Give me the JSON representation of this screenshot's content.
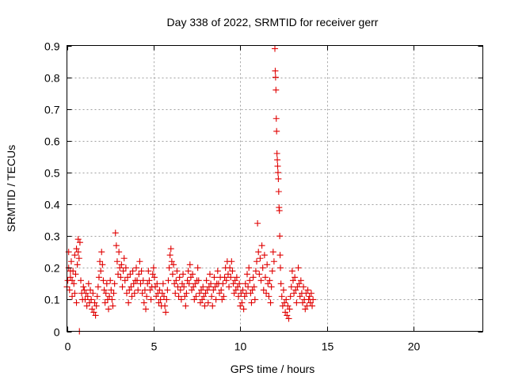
{
  "chart_data": {
    "type": "scatter",
    "title": "Day 338 of 2022, SRMTID for receiver gerr",
    "xlabel": "GPS time / hours",
    "ylabel": "SRMTID / TECUs",
    "xlim": [
      0,
      24
    ],
    "ylim": [
      0,
      0.9
    ],
    "xticks": [
      0,
      5,
      10,
      15,
      20
    ],
    "yticks": [
      0,
      0.1,
      0.2,
      0.3,
      0.4,
      0.5,
      0.6,
      0.7,
      0.8,
      0.9
    ],
    "xtick_labels": [
      "0",
      "5",
      "10",
      "15",
      "20"
    ],
    "ytick_labels": [
      "0",
      "0.1",
      "0.2",
      "0.3",
      "0.4",
      "0.5",
      "0.6",
      "0.7",
      "0.8",
      "0.9"
    ],
    "grid": true,
    "marker": "+",
    "series": [
      {
        "name": "SRMTID",
        "color": "#e00000",
        "points": [
          [
            0.0,
            0.14
          ],
          [
            0.05,
            0.16
          ],
          [
            0.1,
            0.2
          ],
          [
            0.15,
            0.13
          ],
          [
            0.2,
            0.17
          ],
          [
            0.25,
            0.22
          ],
          [
            0.3,
            0.11
          ],
          [
            0.35,
            0.19
          ],
          [
            0.4,
            0.15
          ],
          [
            0.45,
            0.24
          ],
          [
            0.5,
            0.18
          ],
          [
            0.55,
            0.26
          ],
          [
            0.6,
            0.21
          ],
          [
            0.65,
            0.29
          ],
          [
            0.7,
            0.23
          ],
          [
            0.75,
            0.28
          ],
          [
            0.8,
            0.16
          ],
          [
            0.85,
            0.12
          ],
          [
            0.9,
            0.1
          ],
          [
            0.95,
            0.14
          ],
          [
            0.1,
            0.25
          ],
          [
            0.2,
            0.19
          ],
          [
            0.3,
            0.16
          ],
          [
            0.45,
            0.12
          ],
          [
            0.55,
            0.09
          ],
          [
            0.65,
            0.25
          ],
          [
            0.72,
            0.0
          ],
          [
            1.0,
            0.13
          ],
          [
            1.05,
            0.1
          ],
          [
            1.1,
            0.12
          ],
          [
            1.15,
            0.08
          ],
          [
            1.2,
            0.11
          ],
          [
            1.25,
            0.15
          ],
          [
            1.3,
            0.09
          ],
          [
            1.35,
            0.13
          ],
          [
            1.4,
            0.1
          ],
          [
            1.45,
            0.07
          ],
          [
            1.5,
            0.12
          ],
          [
            1.55,
            0.06
          ],
          [
            1.6,
            0.09
          ],
          [
            1.65,
            0.05
          ],
          [
            1.7,
            0.08
          ],
          [
            1.75,
            0.11
          ],
          [
            1.8,
            0.14
          ],
          [
            1.85,
            0.17
          ],
          [
            1.9,
            0.22
          ],
          [
            1.95,
            0.19
          ],
          [
            2.0,
            0.25
          ],
          [
            2.05,
            0.21
          ],
          [
            2.1,
            0.16
          ],
          [
            2.15,
            0.13
          ],
          [
            2.2,
            0.09
          ],
          [
            2.25,
            0.12
          ],
          [
            2.3,
            0.15
          ],
          [
            2.35,
            0.1
          ],
          [
            2.4,
            0.07
          ],
          [
            2.45,
            0.11
          ],
          [
            2.5,
            0.16
          ],
          [
            2.55,
            0.13
          ],
          [
            2.6,
            0.1
          ],
          [
            2.65,
            0.08
          ],
          [
            2.7,
            0.12
          ],
          [
            2.75,
            0.15
          ],
          [
            2.8,
            0.31
          ],
          [
            2.85,
            0.27
          ],
          [
            2.9,
            0.22
          ],
          [
            2.95,
            0.18
          ],
          [
            3.0,
            0.25
          ],
          [
            3.05,
            0.2
          ],
          [
            3.1,
            0.17
          ],
          [
            3.15,
            0.21
          ],
          [
            3.2,
            0.14
          ],
          [
            3.25,
            0.19
          ],
          [
            3.3,
            0.23
          ],
          [
            3.35,
            0.16
          ],
          [
            3.4,
            0.2
          ],
          [
            3.45,
            0.12
          ],
          [
            3.5,
            0.17
          ],
          [
            3.55,
            0.09
          ],
          [
            3.6,
            0.13
          ],
          [
            3.65,
            0.18
          ],
          [
            3.7,
            0.14
          ],
          [
            3.75,
            0.11
          ],
          [
            3.8,
            0.19
          ],
          [
            3.85,
            0.15
          ],
          [
            3.9,
            0.12
          ],
          [
            3.95,
            0.16
          ],
          [
            4.0,
            0.2
          ],
          [
            4.05,
            0.16
          ],
          [
            4.1,
            0.13
          ],
          [
            4.15,
            0.18
          ],
          [
            4.2,
            0.22
          ],
          [
            4.25,
            0.15
          ],
          [
            4.3,
            0.19
          ],
          [
            4.35,
            0.12
          ],
          [
            4.4,
            0.16
          ],
          [
            4.45,
            0.09
          ],
          [
            4.5,
            0.13
          ],
          [
            4.55,
            0.07
          ],
          [
            4.6,
            0.11
          ],
          [
            4.65,
            0.15
          ],
          [
            4.7,
            0.19
          ],
          [
            4.75,
            0.16
          ],
          [
            4.8,
            0.13
          ],
          [
            4.85,
            0.1
          ],
          [
            4.9,
            0.14
          ],
          [
            4.95,
            0.18
          ],
          [
            5.0,
            0.2
          ],
          [
            5.05,
            0.17
          ],
          [
            5.1,
            0.14
          ],
          [
            5.15,
            0.11
          ],
          [
            5.2,
            0.15
          ],
          [
            5.25,
            0.12
          ],
          [
            5.3,
            0.09
          ],
          [
            5.35,
            0.13
          ],
          [
            5.4,
            0.1
          ],
          [
            5.45,
            0.08
          ],
          [
            5.5,
            0.12
          ],
          [
            5.55,
            0.15
          ],
          [
            5.6,
            0.11
          ],
          [
            5.65,
            0.08
          ],
          [
            5.7,
            0.06
          ],
          [
            5.75,
            0.1
          ],
          [
            5.8,
            0.13
          ],
          [
            5.85,
            0.16
          ],
          [
            5.9,
            0.2
          ],
          [
            5.95,
            0.24
          ],
          [
            6.0,
            0.26
          ],
          [
            6.05,
            0.22
          ],
          [
            6.1,
            0.18
          ],
          [
            6.15,
            0.21
          ],
          [
            6.2,
            0.15
          ],
          [
            6.25,
            0.12
          ],
          [
            6.3,
            0.16
          ],
          [
            6.35,
            0.19
          ],
          [
            6.4,
            0.14
          ],
          [
            6.45,
            0.11
          ],
          [
            6.5,
            0.17
          ],
          [
            6.55,
            0.13
          ],
          [
            6.6,
            0.1
          ],
          [
            6.65,
            0.15
          ],
          [
            6.7,
            0.18
          ],
          [
            6.75,
            0.14
          ],
          [
            6.8,
            0.11
          ],
          [
            6.85,
            0.08
          ],
          [
            6.9,
            0.12
          ],
          [
            6.95,
            0.16
          ],
          [
            7.0,
            0.19
          ],
          [
            7.05,
            0.15
          ],
          [
            7.1,
            0.21
          ],
          [
            7.15,
            0.17
          ],
          [
            7.2,
            0.13
          ],
          [
            7.25,
            0.18
          ],
          [
            7.3,
            0.14
          ],
          [
            7.35,
            0.1
          ],
          [
            7.4,
            0.15
          ],
          [
            7.45,
            0.11
          ],
          [
            7.5,
            0.16
          ],
          [
            7.55,
            0.2
          ],
          [
            7.6,
            0.16
          ],
          [
            7.65,
            0.12
          ],
          [
            7.7,
            0.09
          ],
          [
            7.75,
            0.13
          ],
          [
            7.8,
            0.1
          ],
          [
            7.85,
            0.14
          ],
          [
            7.9,
            0.11
          ],
          [
            7.95,
            0.08
          ],
          [
            8.0,
            0.12
          ],
          [
            8.05,
            0.16
          ],
          [
            8.1,
            0.13
          ],
          [
            8.15,
            0.09
          ],
          [
            8.2,
            0.14
          ],
          [
            8.25,
            0.18
          ],
          [
            8.3,
            0.15
          ],
          [
            8.35,
            0.11
          ],
          [
            8.4,
            0.08
          ],
          [
            8.45,
            0.13
          ],
          [
            8.5,
            0.17
          ],
          [
            8.55,
            0.14
          ],
          [
            8.6,
            0.1
          ],
          [
            8.65,
            0.15
          ],
          [
            8.7,
            0.19
          ],
          [
            8.75,
            0.15
          ],
          [
            8.8,
            0.12
          ],
          [
            8.85,
            0.17
          ],
          [
            8.9,
            0.13
          ],
          [
            8.95,
            0.1
          ],
          [
            9.0,
            0.15
          ],
          [
            9.05,
            0.11
          ],
          [
            9.1,
            0.17
          ],
          [
            9.15,
            0.2
          ],
          [
            9.2,
            0.16
          ],
          [
            9.25,
            0.22
          ],
          [
            9.3,
            0.18
          ],
          [
            9.35,
            0.14
          ],
          [
            9.4,
            0.2
          ],
          [
            9.45,
            0.17
          ],
          [
            9.5,
            0.22
          ],
          [
            9.55,
            0.19
          ],
          [
            9.6,
            0.15
          ],
          [
            9.65,
            0.12
          ],
          [
            9.7,
            0.16
          ],
          [
            9.75,
            0.13
          ],
          [
            9.8,
            0.17
          ],
          [
            9.85,
            0.14
          ],
          [
            9.9,
            0.11
          ],
          [
            9.95,
            0.15
          ],
          [
            10.0,
            0.08
          ],
          [
            10.05,
            0.12
          ],
          [
            10.1,
            0.09
          ],
          [
            10.15,
            0.13
          ],
          [
            10.2,
            0.07
          ],
          [
            10.25,
            0.11
          ],
          [
            10.3,
            0.15
          ],
          [
            10.35,
            0.12
          ],
          [
            10.4,
            0.18
          ],
          [
            10.45,
            0.14
          ],
          [
            10.5,
            0.2
          ],
          [
            10.55,
            0.16
          ],
          [
            10.6,
            0.12
          ],
          [
            10.65,
            0.09
          ],
          [
            10.7,
            0.13
          ],
          [
            10.75,
            0.17
          ],
          [
            10.8,
            0.14
          ],
          [
            10.85,
            0.1
          ],
          [
            10.9,
            0.19
          ],
          [
            10.95,
            0.22
          ],
          [
            11.0,
            0.34
          ],
          [
            11.05,
            0.25
          ],
          [
            11.1,
            0.18
          ],
          [
            11.15,
            0.23
          ],
          [
            11.2,
            0.16
          ],
          [
            11.25,
            0.27
          ],
          [
            11.3,
            0.2
          ],
          [
            11.35,
            0.13
          ],
          [
            11.4,
            0.24
          ],
          [
            11.45,
            0.17
          ],
          [
            11.5,
            0.12
          ],
          [
            11.55,
            0.21
          ],
          [
            11.6,
            0.15
          ],
          [
            11.65,
            0.11
          ],
          [
            11.7,
            0.16
          ],
          [
            11.75,
            0.09
          ],
          [
            11.8,
            0.14
          ],
          [
            11.85,
            0.19
          ],
          [
            11.9,
            0.25
          ],
          [
            11.95,
            0.22
          ],
          [
            12.0,
            0.89
          ],
          [
            12.02,
            0.82
          ],
          [
            12.04,
            0.8
          ],
          [
            12.06,
            0.76
          ],
          [
            12.08,
            0.67
          ],
          [
            12.1,
            0.63
          ],
          [
            12.12,
            0.56
          ],
          [
            12.14,
            0.54
          ],
          [
            12.16,
            0.52
          ],
          [
            12.18,
            0.5
          ],
          [
            12.2,
            0.48
          ],
          [
            12.22,
            0.44
          ],
          [
            12.24,
            0.39
          ],
          [
            12.26,
            0.38
          ],
          [
            12.28,
            0.3
          ],
          [
            12.3,
            0.24
          ],
          [
            12.32,
            0.2
          ],
          [
            12.35,
            0.15
          ],
          [
            12.4,
            0.11
          ],
          [
            12.45,
            0.08
          ],
          [
            12.5,
            0.13
          ],
          [
            12.55,
            0.09
          ],
          [
            12.6,
            0.06
          ],
          [
            12.65,
            0.1
          ],
          [
            12.7,
            0.05
          ],
          [
            12.75,
            0.08
          ],
          [
            12.8,
            0.04
          ],
          [
            12.85,
            0.07
          ],
          [
            12.9,
            0.11
          ],
          [
            12.95,
            0.14
          ],
          [
            13.0,
            0.19
          ],
          [
            13.05,
            0.16
          ],
          [
            13.1,
            0.12
          ],
          [
            13.15,
            0.17
          ],
          [
            13.2,
            0.13
          ],
          [
            13.25,
            0.09
          ],
          [
            13.3,
            0.14
          ],
          [
            13.35,
            0.2
          ],
          [
            13.4,
            0.15
          ],
          [
            13.45,
            0.11
          ],
          [
            13.5,
            0.16
          ],
          [
            13.55,
            0.12
          ],
          [
            13.6,
            0.09
          ],
          [
            13.65,
            0.14
          ],
          [
            13.7,
            0.1
          ],
          [
            13.75,
            0.07
          ],
          [
            13.8,
            0.12
          ],
          [
            13.85,
            0.08
          ],
          [
            13.9,
            0.13
          ],
          [
            13.95,
            0.1
          ],
          [
            14.0,
            0.11
          ],
          [
            14.05,
            0.09
          ],
          [
            14.1,
            0.12
          ],
          [
            14.15,
            0.08
          ],
          [
            14.2,
            0.1
          ]
        ]
      }
    ]
  }
}
